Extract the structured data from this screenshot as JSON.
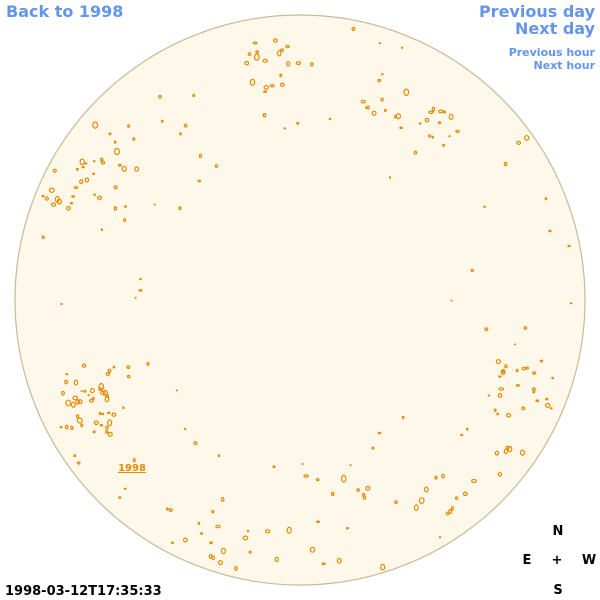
{
  "nav": {
    "back": "Back to 1998",
    "previous_day": "Previous day",
    "next_day": "Next day",
    "previous_hour": "Previous hour",
    "next_hour": "Next hour"
  },
  "disk": {
    "label": "1998"
  },
  "timestamp": "1998-03-12T17:35:33",
  "compass": {
    "north": "N",
    "east": "E",
    "center": "+",
    "west": "W",
    "south": "S"
  }
}
